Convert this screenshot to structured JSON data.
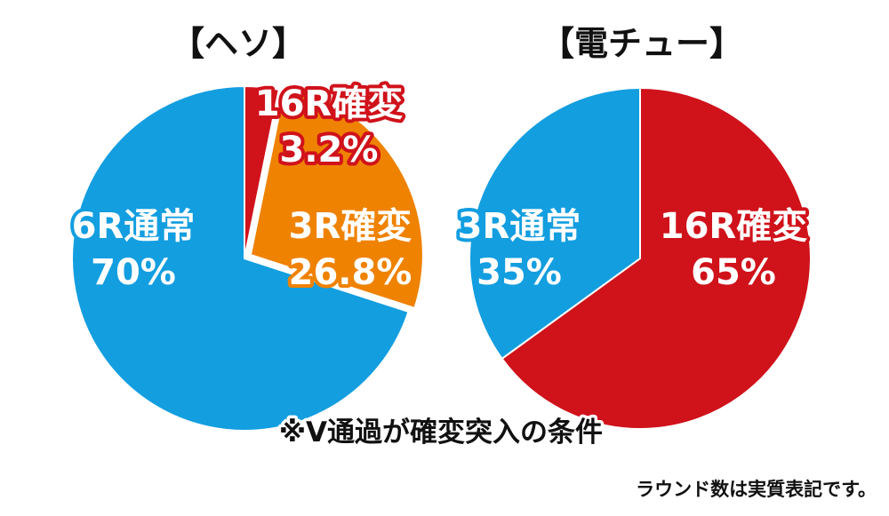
{
  "colors": {
    "blue": "#139ee0",
    "orange": "#ef8200",
    "red": "#d0121b",
    "text": "#111111",
    "outline_text": "#ffffff"
  },
  "chart_data": [
    {
      "type": "pie",
      "title": "【ヘソ】",
      "start_angle_deg": 0,
      "slices": [
        {
          "label": "16R確変",
          "value_text": "3.2%",
          "value": 3.2,
          "color": "#d0121b"
        },
        {
          "label": "3R確変",
          "value_text": "26.8%",
          "value": 26.8,
          "color": "#ef8200",
          "exploded": true
        },
        {
          "label": "6R通常",
          "value_text": "70%",
          "value": 70,
          "color": "#139ee0"
        }
      ]
    },
    {
      "type": "pie",
      "title": "【電チュー】",
      "start_angle_deg": 0,
      "slices": [
        {
          "label": "16R確変",
          "value_text": "65%",
          "value": 65,
          "color": "#d0121b"
        },
        {
          "label": "3R通常",
          "value_text": "35%",
          "value": 35,
          "color": "#139ee0"
        }
      ]
    }
  ],
  "note": "※V通過が確変突入の条件",
  "footnote": "ラウンド数は実質表記です。"
}
